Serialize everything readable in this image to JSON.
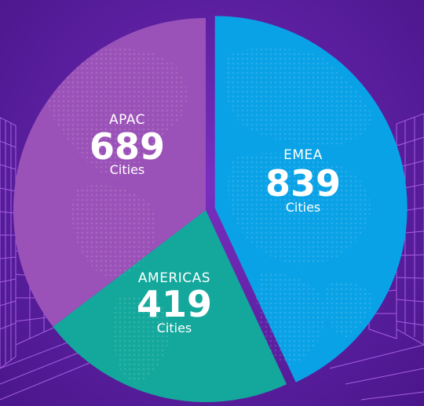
{
  "colors": {
    "background": "#5b1fa0",
    "emea": "#0aa2e6",
    "americas": "#14a89c",
    "apac": "#9b52b8",
    "building_lines": "#b56cf0"
  },
  "icons": {
    "background_map": "world-map-dots",
    "left_decoration": "wireframe-buildings-left",
    "right_decoration": "wireframe-buildings-right"
  },
  "chart_data": {
    "type": "pie",
    "exploded": "EMEA",
    "unit": "Cities",
    "slices": [
      {
        "name": "EMEA",
        "value": 839,
        "unit": "Cities",
        "color": "#0aa2e6"
      },
      {
        "name": "AMERICAS",
        "value": 419,
        "unit": "Cities",
        "color": "#14a89c"
      },
      {
        "name": "APAC",
        "value": 689,
        "unit": "Cities",
        "color": "#9b52b8"
      }
    ]
  }
}
